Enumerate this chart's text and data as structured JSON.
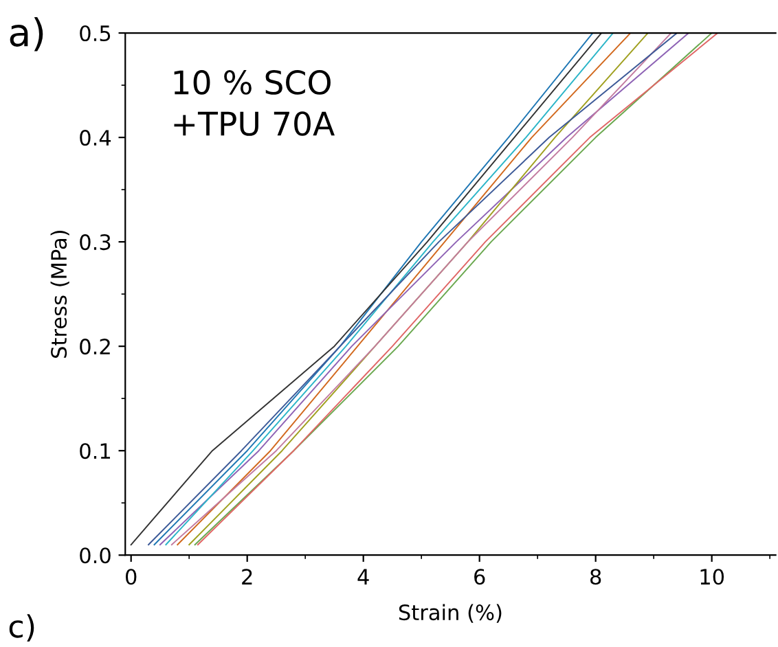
{
  "chart_data": {
    "type": "line",
    "xlabel": "Strain (%)",
    "ylabel": "Stress (MPa)",
    "annotations": [
      "a)",
      "10 % SCO\n+TPU 70A",
      "c)"
    ],
    "xlim": [
      -0.1,
      11.1
    ],
    "xticks": [
      0,
      2,
      4,
      6,
      8,
      10
    ],
    "ylim": [
      0.0,
      0.5
    ],
    "yticks": [
      {
        "value": 0.0,
        "label": "0.0"
      },
      0.1,
      0.2,
      0.3,
      0.4,
      0.5
    ],
    "grid": false,
    "legend": false,
    "marker": "none",
    "line_style": "solid",
    "series": [
      {
        "color": "#1f77b4",
        "x": [
          0.4,
          2.0,
          3.6,
          5.0,
          6.5,
          7.95
        ],
        "values": [
          0.01,
          0.1,
          0.2,
          0.3,
          0.4,
          0.5
        ]
      },
      {
        "color": "#333333",
        "x": [
          0,
          1.4,
          3.5,
          5.1,
          6.6,
          8.1
        ],
        "values": [
          0.01,
          0.1,
          0.2,
          0.3,
          0.4,
          0.5
        ]
      },
      {
        "color": "#d2691e",
        "x": [
          0.8,
          2.4,
          3.9,
          5.4,
          6.9,
          8.6
        ],
        "values": [
          0.01,
          0.1,
          0.2,
          0.3,
          0.4,
          0.5
        ]
      },
      {
        "color": "#6aa84f",
        "x": [
          1.1,
          2.8,
          4.6,
          6.2,
          8.0,
          10.0
        ],
        "values": [
          0.01,
          0.1,
          0.2,
          0.3,
          0.4,
          0.5
        ]
      },
      {
        "color": "#e06666",
        "x": [
          1.15,
          2.8,
          4.5,
          6.1,
          7.9,
          10.1
        ],
        "values": [
          0.01,
          0.1,
          0.2,
          0.3,
          0.4,
          0.5
        ]
      },
      {
        "color": "#8e63b5",
        "x": [
          0.5,
          2.2,
          3.8,
          5.6,
          7.5,
          9.6
        ],
        "values": [
          0.01,
          0.1,
          0.2,
          0.3,
          0.4,
          0.5
        ]
      },
      {
        "color": "#2bb5c8",
        "x": [
          0.6,
          2.1,
          3.7,
          5.2,
          6.8,
          8.3
        ],
        "values": [
          0.01,
          0.1,
          0.2,
          0.3,
          0.4,
          0.5
        ]
      },
      {
        "color": "#a0a020",
        "x": [
          1.0,
          2.6,
          4.2,
          5.8,
          7.3,
          8.9
        ],
        "values": [
          0.01,
          0.1,
          0.2,
          0.3,
          0.4,
          0.5
        ]
      },
      {
        "color": "#c27ba0",
        "x": [
          0.7,
          2.5,
          4.2,
          5.8,
          7.6,
          9.3
        ],
        "values": [
          0.01,
          0.1,
          0.2,
          0.3,
          0.4,
          0.5
        ]
      },
      {
        "color": "#3d5a98",
        "x": [
          0.3,
          1.9,
          3.6,
          5.3,
          7.2,
          9.4
        ],
        "values": [
          0.01,
          0.1,
          0.2,
          0.3,
          0.4,
          0.5
        ]
      }
    ]
  }
}
